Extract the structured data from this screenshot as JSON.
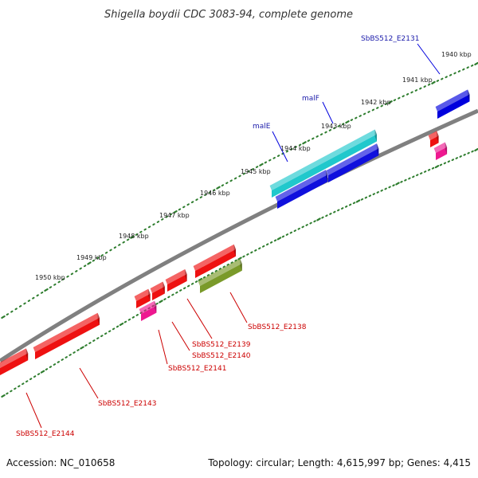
{
  "title": "Shigella boydii CDC 3083-94, complete genome",
  "footer": {
    "accession": "Accession: NC_010658",
    "stats": "Topology: circular; Length: 4,615,997 bp; Genes: 4,415"
  },
  "colors": {
    "backbone": "#808080",
    "tick": "#2e7d2e",
    "forward_gene": "#0000dd",
    "forward_label": "#1a1aaa",
    "reverse_label": "#cc0000",
    "malE": "#20c8cc",
    "malF": "#1010dd",
    "red_gene": "#ee1111",
    "pink_gene": "#ee1890",
    "olive_gene": "#7a9a2a"
  },
  "scale_labels": [
    "1940 kbp",
    "1941 kbp",
    "1942 kbp",
    "1943 kbp",
    "1944 kbp",
    "1945 kbp",
    "1946 kbp",
    "1947 kbp",
    "1948 kbp",
    "1949 kbp",
    "1950 kbp"
  ],
  "forward_gene_labels": [
    "SbBS512_E2131",
    "malF",
    "malE"
  ],
  "reverse_gene_labels": [
    "SbBS512_E2138",
    "SbBS512_E2139",
    "SbBS512_E2140",
    "SbBS512_E2141",
    "SbBS512_E2143",
    "SbBS512_E2144"
  ]
}
